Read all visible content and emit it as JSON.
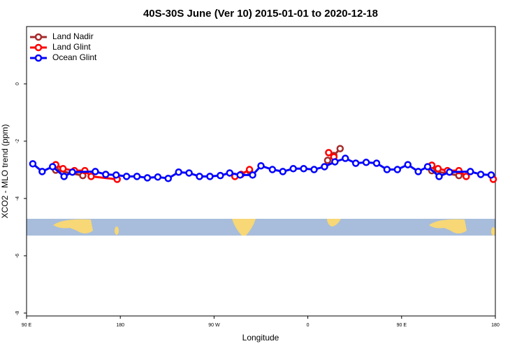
{
  "chart_data": {
    "type": "line",
    "title": "40S-30S June (Ver 10)   2015-01-01 to 2020-12-18",
    "xlabel": "Longitude",
    "ylabel": "XCO2 - MLO trend (ppm)",
    "xlim": [
      90,
      540
    ],
    "xticks": [
      {
        "value": 90,
        "label": "90 E"
      },
      {
        "value": 180,
        "label": "180"
      },
      {
        "value": 270,
        "label": "90 W"
      },
      {
        "value": 360,
        "label": "0"
      },
      {
        "value": 450,
        "label": "90 E"
      },
      {
        "value": 540,
        "label": "180"
      }
    ],
    "ylim": [
      -8.1,
      2
    ],
    "yticks": [
      0,
      -2,
      -4,
      -6,
      -8
    ],
    "legend": "top-left",
    "series": [
      {
        "name": "Land Nadir",
        "color": "#a52a2a",
        "x": [
          118,
          144,
          null,
          304,
          null,
          379,
          385,
          391,
          null,
          479,
          505
        ],
        "values": [
          -3.01,
          -3.2,
          null,
          -3.03,
          null,
          -2.67,
          -2.5,
          -2.26,
          null,
          -3.03,
          -3.2
        ]
      },
      {
        "name": "Land Glint",
        "color": "#ff0000",
        "x": [
          118,
          125,
          136,
          146,
          152,
          177,
          null,
          290,
          296,
          304,
          null,
          380,
          385,
          null,
          479,
          485,
          494,
          505,
          512,
          null,
          538
        ],
        "values": [
          -2.82,
          -2.96,
          -3.03,
          -3.03,
          -3.23,
          -3.33,
          null,
          -3.23,
          -3.16,
          -2.99,
          null,
          -2.4,
          -2.55,
          null,
          -2.84,
          -2.96,
          -3.03,
          -3.03,
          -3.23,
          null,
          -3.33
        ]
      },
      {
        "name": "Ocean Glint",
        "color": "#0000ff",
        "x": [
          96,
          105,
          115,
          126,
          134,
          156,
          166,
          176,
          186,
          196,
          206,
          216,
          226,
          236,
          246,
          256,
          266,
          276,
          285,
          295,
          307,
          315,
          326,
          336,
          346,
          356,
          366,
          376,
          386,
          396,
          406,
          416,
          426,
          436,
          446,
          456,
          466,
          475,
          486,
          496,
          516,
          526,
          536
        ],
        "values": [
          -2.79,
          -3.06,
          -2.89,
          -3.23,
          -3.08,
          -3.06,
          -3.16,
          -3.18,
          -3.23,
          -3.23,
          -3.28,
          -3.25,
          -3.3,
          -3.08,
          -3.11,
          -3.23,
          -3.23,
          -3.2,
          -3.11,
          -3.18,
          -3.18,
          -2.86,
          -2.99,
          -3.06,
          -2.96,
          -2.96,
          -2.99,
          -2.89,
          -2.72,
          -2.6,
          -2.77,
          -2.74,
          -2.77,
          -2.99,
          -2.99,
          -2.82,
          -3.06,
          -2.89,
          -3.23,
          -3.08,
          -3.06,
          -3.16,
          -3.18
        ]
      }
    ]
  }
}
